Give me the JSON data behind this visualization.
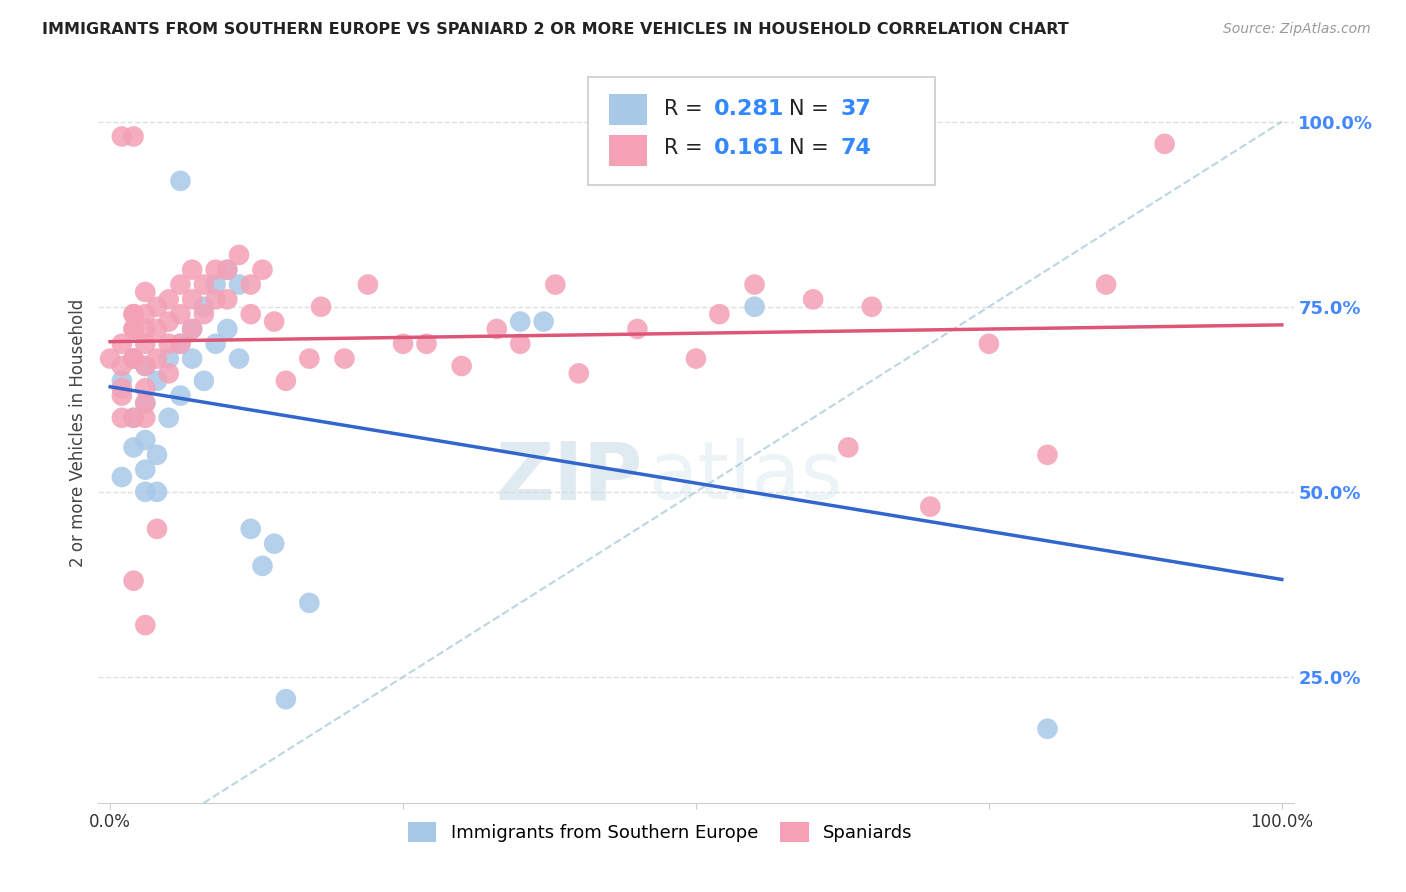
{
  "title": "IMMIGRANTS FROM SOUTHERN EUROPE VS SPANIARD 2 OR MORE VEHICLES IN HOUSEHOLD CORRELATION CHART",
  "source": "Source: ZipAtlas.com",
  "ylabel": "2 or more Vehicles in Household",
  "blue_R": 0.281,
  "blue_N": 37,
  "pink_R": 0.161,
  "pink_N": 74,
  "blue_color": "#a8c8e8",
  "pink_color": "#f4a0b5",
  "blue_line_color": "#3366cc",
  "pink_line_color": "#dd5577",
  "dashed_line_color": "#aaccdd",
  "watermark_zip": "ZIP",
  "watermark_atlas": "atlas",
  "legend_label_blue": "Immigrants from Southern Europe",
  "legend_label_pink": "Spaniards",
  "background_color": "#ffffff",
  "grid_color": "#e0e0e0",
  "blue_x": [
    0.01,
    0.01,
    0.02,
    0.02,
    0.02,
    0.03,
    0.03,
    0.03,
    0.03,
    0.03,
    0.04,
    0.04,
    0.04,
    0.05,
    0.05,
    0.06,
    0.06,
    0.07,
    0.07,
    0.08,
    0.08,
    0.09,
    0.09,
    0.1,
    0.1,
    0.11,
    0.11,
    0.12,
    0.13,
    0.14,
    0.15,
    0.17,
    0.35,
    0.37,
    0.55,
    0.8,
    0.06
  ],
  "blue_y": [
    0.52,
    0.65,
    0.56,
    0.6,
    0.68,
    0.57,
    0.53,
    0.5,
    0.67,
    0.62,
    0.55,
    0.5,
    0.65,
    0.6,
    0.68,
    0.7,
    0.63,
    0.72,
    0.68,
    0.75,
    0.65,
    0.78,
    0.7,
    0.8,
    0.72,
    0.78,
    0.68,
    0.45,
    0.4,
    0.43,
    0.22,
    0.35,
    0.73,
    0.73,
    0.75,
    0.18,
    0.92
  ],
  "pink_x": [
    0.0,
    0.01,
    0.01,
    0.01,
    0.01,
    0.01,
    0.02,
    0.02,
    0.02,
    0.02,
    0.02,
    0.02,
    0.02,
    0.03,
    0.03,
    0.03,
    0.03,
    0.03,
    0.03,
    0.03,
    0.04,
    0.04,
    0.04,
    0.05,
    0.05,
    0.05,
    0.05,
    0.06,
    0.06,
    0.06,
    0.07,
    0.07,
    0.07,
    0.08,
    0.08,
    0.09,
    0.09,
    0.1,
    0.1,
    0.11,
    0.12,
    0.12,
    0.13,
    0.14,
    0.15,
    0.17,
    0.18,
    0.2,
    0.22,
    0.25,
    0.27,
    0.3,
    0.33,
    0.35,
    0.38,
    0.4,
    0.45,
    0.5,
    0.52,
    0.55,
    0.6,
    0.63,
    0.65,
    0.7,
    0.75,
    0.8,
    0.85,
    0.9,
    0.03,
    0.04,
    0.01,
    0.02,
    0.02,
    0.03
  ],
  "pink_y": [
    0.68,
    0.63,
    0.7,
    0.67,
    0.64,
    0.6,
    0.72,
    0.68,
    0.74,
    0.6,
    0.72,
    0.68,
    0.74,
    0.74,
    0.7,
    0.67,
    0.64,
    0.6,
    0.77,
    0.72,
    0.72,
    0.68,
    0.75,
    0.76,
    0.73,
    0.7,
    0.66,
    0.78,
    0.74,
    0.7,
    0.8,
    0.76,
    0.72,
    0.78,
    0.74,
    0.8,
    0.76,
    0.8,
    0.76,
    0.82,
    0.78,
    0.74,
    0.8,
    0.73,
    0.65,
    0.68,
    0.75,
    0.68,
    0.78,
    0.7,
    0.7,
    0.67,
    0.72,
    0.7,
    0.78,
    0.66,
    0.72,
    0.68,
    0.74,
    0.78,
    0.76,
    0.56,
    0.75,
    0.48,
    0.7,
    0.55,
    0.78,
    0.97,
    0.62,
    0.45,
    0.98,
    0.98,
    0.38,
    0.32
  ],
  "ytick_vals": [
    0.25,
    0.5,
    0.75,
    1.0
  ],
  "ytick_labels": [
    "25.0%",
    "50.0%",
    "75.0%",
    "100.0%"
  ],
  "xlim": [
    -0.01,
    1.01
  ],
  "ylim": [
    0.08,
    1.08
  ]
}
